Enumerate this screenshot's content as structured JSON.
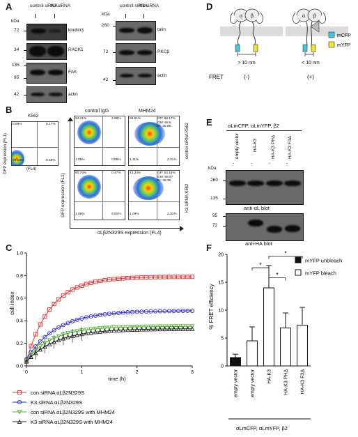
{
  "panel_letters": {
    "a": "A",
    "b": "B",
    "c": "C",
    "d": "D",
    "e": "E",
    "f": "F"
  },
  "panelA": {
    "kda": "kDa",
    "left_lanes": [
      "control siRNA",
      "K3 siRNA"
    ],
    "right_lanes": [
      "control siRNA",
      "K3 siRNA"
    ],
    "left_blots": [
      {
        "label": "kindlin3",
        "markers": [
          "72"
        ]
      },
      {
        "label": "RACK1",
        "markers": [
          "34"
        ]
      },
      {
        "label": "FAK",
        "markers": [
          "135",
          "95"
        ]
      },
      {
        "label": "actin",
        "markers": [
          "42"
        ]
      }
    ],
    "right_blots": [
      {
        "label": "talin",
        "markers": [
          "260"
        ]
      },
      {
        "label": "PKCβ",
        "markers": [
          "72"
        ]
      },
      {
        "label": "actin",
        "markers": [
          "42"
        ]
      }
    ]
  },
  "panelB": {
    "k562": {
      "title": "K562",
      "ylabel": "GFP expression (FL1)",
      "xlabel": "(FL4)",
      "quadrants": [
        "0.89%",
        "0.17%",
        "99.18%",
        "0.59%"
      ]
    },
    "col_titles": [
      "control IgG",
      "MHM24"
    ],
    "row_labels": [
      "control siRNA K562",
      "K3 siRNA K562"
    ],
    "ylabel": "GFP expression (FL1)",
    "xlabel": "αLβ2N329S expression (FL4)",
    "plots": [
      {
        "quadrants": [
          "94.21%",
          "3.89%",
          "1.05%",
          "0.85%"
        ],
        "stats": ""
      },
      {
        "quadrants": [
          "28.61%",
          "GP: 68.17%",
          "1.11%",
          "2.31%"
        ],
        "stats": "GM: 66.8\nEI: 35.65"
      },
      {
        "quadrants": [
          "90.70%",
          "0.47%",
          "1.08%",
          "0.51%"
        ],
        "stats": ""
      },
      {
        "quadrants": [
          "43.34%",
          "GP: 53.16%",
          "1.09%",
          "2.31%"
        ],
        "stats": "GM: 66.57\nEI: 38.36"
      }
    ]
  },
  "panelD": {
    "left_dist": "> 10 nm",
    "right_dist": "< 10 nm",
    "fret_label": "FRET",
    "left_fret": "(-)",
    "right_fret": "(+)",
    "legend": [
      {
        "label": "mCFP",
        "color": "#40c8d8"
      },
      {
        "label": "mYFP",
        "color": "#f2e22a"
      }
    ],
    "alpha": "α",
    "beta": "β"
  },
  "panelE": {
    "header": "αLmCFP, αLmYFP, β2",
    "lanes": [
      "empty vector",
      "HA-K3",
      "HA-K3 PHΔ",
      "HA-K3 F3Δ"
    ],
    "lane_marks": [
      "-",
      "-",
      "-",
      "-"
    ],
    "kda": "kDa",
    "top_markers": [
      "260",
      "135"
    ],
    "top_caption": "anti-αL blot",
    "bottom_markers": [
      "95",
      "72"
    ],
    "bottom_caption": "anti-HA blot"
  },
  "chart_data": [
    {
      "type": "line",
      "panel": "C",
      "xlabel": "time (h)",
      "ylabel": "cell index",
      "xlim": [
        0,
        3
      ],
      "ylim": [
        0,
        1.0
      ],
      "xticks": [
        0,
        1,
        2,
        3
      ],
      "yticks": [
        0.0,
        0.2,
        0.4,
        0.6,
        0.8,
        1.0
      ],
      "series": [
        {
          "name": "con siRNA αLβ2N329S",
          "color": "#e23030",
          "marker": "square",
          "a": 0.79,
          "k": 1.6,
          "y0": 0.05
        },
        {
          "name": "K3 siRNA αLβ2N329S",
          "color": "#2a2ad0",
          "marker": "circle",
          "a": 0.49,
          "k": 1.3,
          "y0": 0.06
        },
        {
          "name": "con siRNA αLβ2N329S with MHM24",
          "color": "#50b030",
          "marker": "triangle-down",
          "a": 0.35,
          "k": 1.5,
          "y0": 0.05
        },
        {
          "name": "K3 siRNA αLβ2N329S with MHM24",
          "color": "#222222",
          "marker": "triangle-up",
          "a": 0.33,
          "k": 1.3,
          "y0": 0.04
        }
      ]
    },
    {
      "type": "bar",
      "panel": "F",
      "ylabel": "% FRET efficiency",
      "xlabel": "αLmCFP, αLmYFP, β2",
      "ylim": [
        0,
        20
      ],
      "yticks": [
        0,
        5,
        10,
        15,
        20
      ],
      "categories": [
        "empty vector",
        "empty vector",
        "HA-K3",
        "HA-K3 PHΔ",
        "HA-K3 F3Δ"
      ],
      "values": [
        1.5,
        4.5,
        14.0,
        6.8,
        7.3
      ],
      "errors": [
        0.6,
        2.5,
        4.0,
        2.7,
        3.2
      ],
      "groups": [
        "mYFP unbleach",
        "mYFP bleach",
        "mYFP bleach",
        "mYFP bleach",
        "mYFP bleach"
      ],
      "legend": [
        {
          "name": "mYFP unbleach",
          "fill": "#111111"
        },
        {
          "name": "mYFP bleach",
          "fill": "#ffffff"
        }
      ],
      "significance": "*"
    }
  ]
}
